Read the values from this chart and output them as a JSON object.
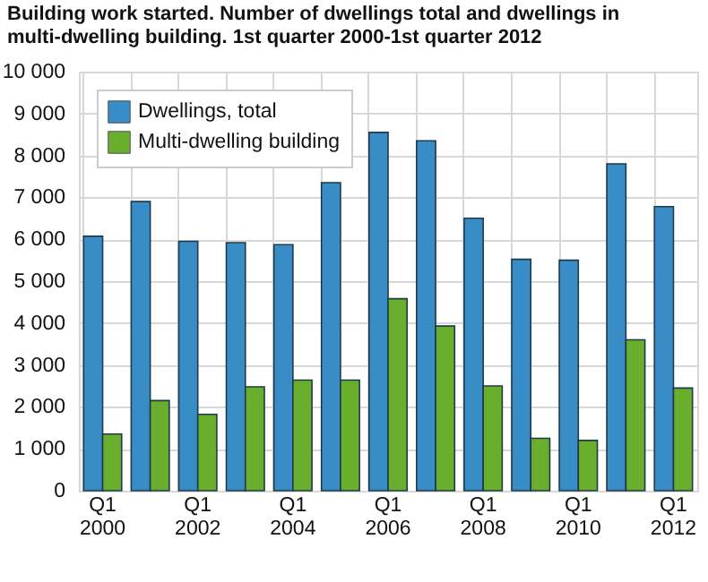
{
  "chart_data": {
    "type": "bar",
    "title": "Building work started. Number of dwellings total and dwellings in multi-dwelling building. 1st quarter 2000-1st quarter 2012",
    "categories": [
      "Q1 2000",
      null,
      "Q1 2002",
      null,
      "Q1 2004",
      null,
      "Q1 2006",
      null,
      "Q1 2008",
      null,
      "Q1 2010",
      null,
      "Q1 2012"
    ],
    "series": [
      {
        "name": "Dwellings, total",
        "color": "#398dc6",
        "values": [
          6070,
          6900,
          5950,
          5920,
          5870,
          7350,
          8550,
          8350,
          6500,
          5520,
          5500,
          7800,
          6780
        ]
      },
      {
        "name": "Multi-dwelling building",
        "color": "#6aae2e",
        "values": [
          1350,
          2150,
          1820,
          2480,
          2640,
          2640,
          4580,
          3930,
          2500,
          1250,
          1200,
          3600,
          2450
        ]
      }
    ],
    "ylim": [
      0,
      10000
    ],
    "yticks": [
      0,
      {
        "value": 1000,
        "label": "1 000"
      },
      {
        "value": 2000,
        "label": "2 000"
      },
      {
        "value": 3000,
        "label": "3 000"
      },
      {
        "value": 4000,
        "label": "4 000"
      },
      {
        "value": 5000,
        "label": "5 000"
      },
      {
        "value": 6000,
        "label": "6 000"
      },
      {
        "value": 7000,
        "label": "7 000"
      },
      {
        "value": 8000,
        "label": "8 000"
      },
      {
        "value": 9000,
        "label": "9 000"
      },
      {
        "value": 10000,
        "label": "10 000"
      }
    ],
    "grid": true,
    "legend": "top left"
  }
}
